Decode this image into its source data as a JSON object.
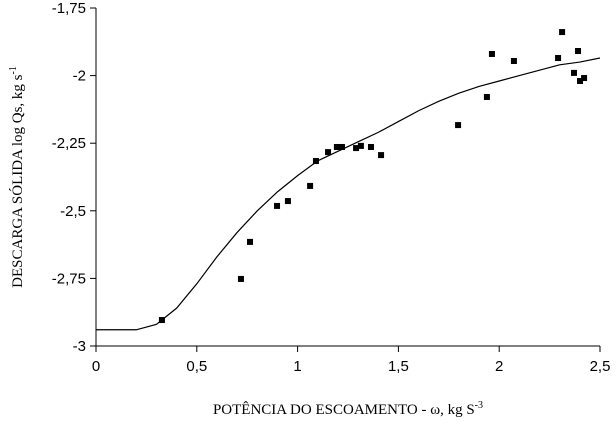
{
  "chart_data": {
    "type": "scatter",
    "x_label": {
      "text": "POTÊNCIA DO ESCOAMENTO - ω, kg S",
      "sup": "-3"
    },
    "y_label": {
      "text": "DESCARGA SÓLIDA log Qs, kg s",
      "sup": "-1"
    },
    "xlim": [
      0,
      2.5
    ],
    "ylim": [
      -3,
      -1.75
    ],
    "xticks": [
      0,
      {
        "value": 0.5,
        "label": "0,5"
      },
      1,
      {
        "value": 1.5,
        "label": "1,5"
      },
      2,
      {
        "value": 2.5,
        "label": "2,5"
      }
    ],
    "yticks": [
      -3,
      {
        "value": -2.75,
        "label": "-2,75"
      },
      {
        "value": -2.5,
        "label": "-2,5"
      },
      {
        "value": -2.25,
        "label": "-2,25"
      },
      -2,
      {
        "value": -1.75,
        "label": "-1,75"
      }
    ],
    "series": [
      {
        "type": "scatter",
        "color": "#000000",
        "x": [
          0.327,
          0.719,
          0.764,
          0.898,
          0.952,
          1.062,
          1.091,
          1.151,
          1.195,
          1.22,
          1.29,
          1.314,
          1.364,
          1.414,
          1.796,
          1.939,
          1.964,
          2.073,
          2.292,
          2.312,
          2.371,
          2.391,
          2.401,
          2.421
        ],
        "values": [
          -2.904,
          -2.752,
          -2.615,
          -2.482,
          -2.464,
          -2.408,
          -2.316,
          -2.283,
          -2.264,
          -2.264,
          -2.268,
          -2.26,
          -2.264,
          -2.294,
          -2.183,
          -2.079,
          -1.92,
          -1.946,
          -1.935,
          -1.839,
          -1.99,
          -1.909,
          -2.02,
          -2.009
        ]
      },
      {
        "type": "line",
        "color": "#000000",
        "x": [
          0,
          0.2,
          0.3,
          0.4,
          0.5,
          0.6,
          0.7,
          0.8,
          0.9,
          1.0,
          1.1,
          1.2,
          1.3,
          1.4,
          1.5,
          1.6,
          1.7,
          1.8,
          1.9,
          2.0,
          2.1,
          2.2,
          2.3,
          2.4,
          2.5
        ],
        "values": [
          -2.94,
          -2.94,
          -2.92,
          -2.86,
          -2.77,
          -2.67,
          -2.58,
          -2.5,
          -2.43,
          -2.37,
          -2.315,
          -2.28,
          -2.245,
          -2.21,
          -2.17,
          -2.13,
          -2.095,
          -2.065,
          -2.04,
          -2.02,
          -2.0,
          -1.98,
          -1.96,
          -1.95,
          -1.935
        ]
      }
    ]
  }
}
